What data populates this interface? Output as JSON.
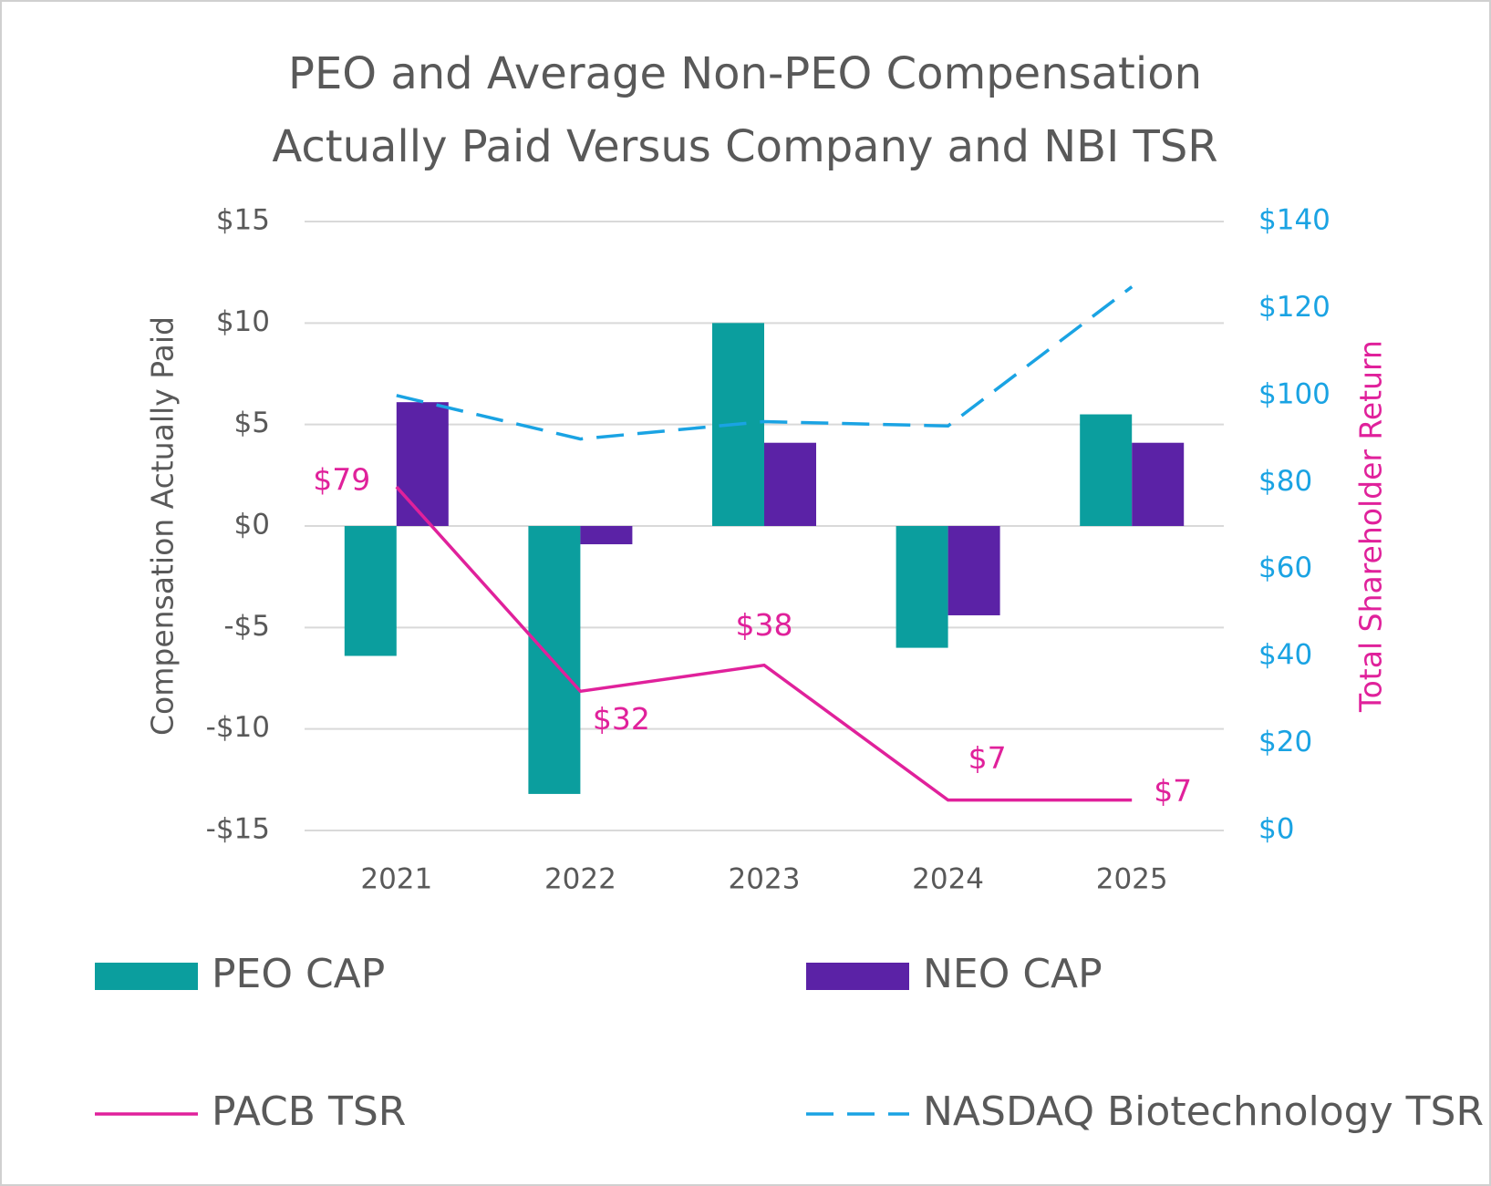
{
  "chart_data": {
    "type": "bar",
    "title": "PEO and Average Non-PEO Compensation",
    "subtitle": "Actually Paid Versus Company and NBI TSR",
    "y_label": "Compensation Actually Paid",
    "y2_label": "Total Shareholder Return",
    "categories": [
      "2021",
      "2022",
      "2023",
      "2024",
      "2025"
    ],
    "series": [
      {
        "name": "PEO CAP",
        "color": "#0b9e9e",
        "type": "bar",
        "values": [
          -6.4,
          -13.2,
          10.0,
          -6.0,
          5.5
        ]
      },
      {
        "name": "NEO CAP",
        "color": "#5b22a6",
        "type": "bar",
        "values": [
          6.1,
          -0.9,
          4.1,
          -4.4,
          4.1
        ]
      },
      {
        "name": "PACB TSR",
        "color": "#e0219b",
        "type": "line",
        "axis": "y2",
        "values": [
          79,
          32,
          38,
          7,
          7
        ],
        "value_labels": [
          "$79",
          "$32",
          "$38",
          "$7",
          "$7"
        ]
      },
      {
        "name": "NASDAQ Biotechnology TSR",
        "color": "#1aa3e3",
        "type": "line",
        "dashed": true,
        "axis": "y2",
        "values": [
          100,
          90,
          94,
          93,
          125
        ]
      }
    ],
    "ylim": [
      -15,
      15
    ],
    "yticks": [
      {
        "value": -15,
        "label": "-$15"
      },
      {
        "value": -10,
        "label": "-$10"
      },
      {
        "value": -5,
        "label": "-$5"
      },
      {
        "value": 0,
        "label": "$0"
      },
      {
        "value": 5,
        "label": "$5"
      },
      {
        "value": 10,
        "label": "$10"
      },
      {
        "value": 15,
        "label": "$15"
      }
    ],
    "y2lim": [
      0,
      140
    ],
    "y2ticks": [
      {
        "value": 0,
        "label": "$0"
      },
      {
        "value": 20,
        "label": "$20"
      },
      {
        "value": 40,
        "label": "$40"
      },
      {
        "value": 60,
        "label": "$60"
      },
      {
        "value": 80,
        "label": "$80"
      },
      {
        "value": 100,
        "label": "$100"
      },
      {
        "value": 120,
        "label": "$120"
      },
      {
        "value": 140,
        "label": "$140"
      }
    ],
    "y2_color": "#1aa3e3",
    "grid": true
  }
}
